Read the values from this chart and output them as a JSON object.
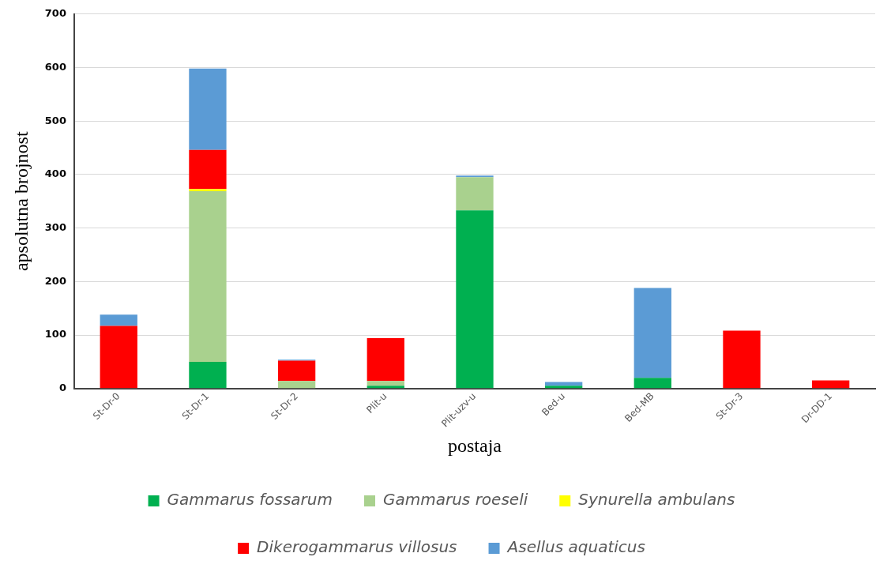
{
  "chart_data": {
    "type": "bar",
    "stacked": true,
    "xlabel": "postaja",
    "ylabel": "apsolutna brojnost",
    "categories": [
      "St-Dr-0",
      "St-Dr-1",
      "St-Dr-2",
      "Plit-u",
      "Plit-uzv-u",
      "Bed-u",
      "Bed-MB",
      "St-Dr-3",
      "Dr-DD-1"
    ],
    "series": [
      {
        "name": "Gammarus fossarum",
        "color": "#00b050",
        "values": [
          0,
          50,
          0,
          5,
          333,
          5,
          20,
          0,
          0
        ]
      },
      {
        "name": "Gammarus roeseli",
        "color": "#a9d18e",
        "values": [
          0,
          319,
          14,
          9,
          62,
          0,
          0,
          0,
          0
        ]
      },
      {
        "name": "Synurella ambulans",
        "color": "#ffff00",
        "values": [
          0,
          4,
          0,
          0,
          0,
          0,
          0,
          0,
          0
        ]
      },
      {
        "name": "Dikerogammarus villosus",
        "color": "#ff0000",
        "values": [
          117,
          73,
          38,
          80,
          0,
          0,
          0,
          108,
          15
        ]
      },
      {
        "name": "Asellus aquaticus",
        "color": "#5b9bd5",
        "values": [
          21,
          152,
          2,
          0,
          3,
          7,
          168,
          0,
          0
        ]
      }
    ],
    "ylim": [
      0,
      700
    ],
    "yticks": [
      0,
      100,
      200,
      300,
      400,
      500,
      600,
      700
    ],
    "grid": "y",
    "legend": "bottom"
  }
}
